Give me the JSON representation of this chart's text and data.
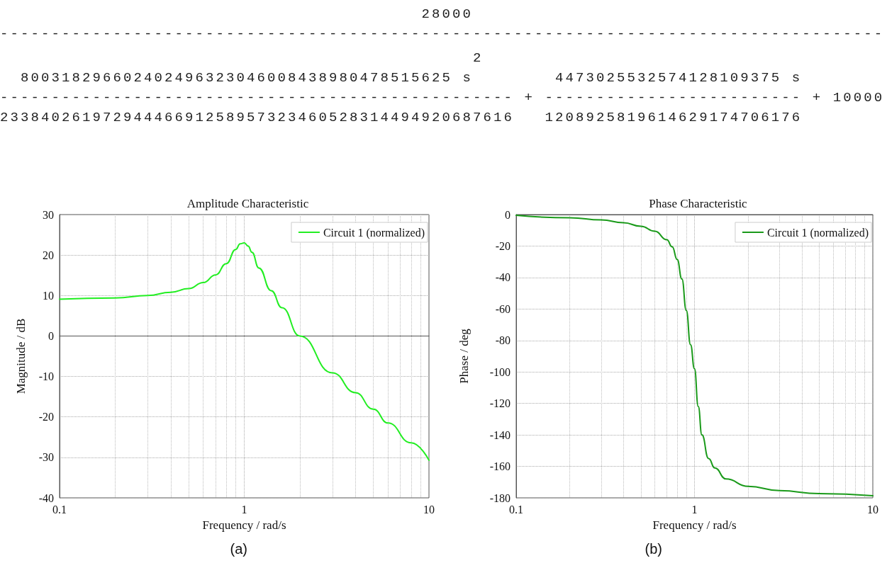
{
  "chart_data": [
    {
      "type": "other",
      "annotations": [
        "                                         28000",
        "--------------------------------------------------------------------------------------",
        "                                              2",
        "  800318296602402496323046008438980478515625 s        4473025532574128109375 s",
        "-------------------------------------------------- + ------------------------- + 10000",
        "23384026197294446691258957323460528314494920687616   1208925819614629174706176"
      ]
    },
    {
      "type": "line",
      "title": "Amplitude Characteristic",
      "xlabel": "Frequency / rad/s",
      "ylabel": "Magnitude / dB",
      "log": "x",
      "grid": true,
      "legend": "top right",
      "xlim": [
        0.1,
        10
      ],
      "xticks": [
        0.1,
        1,
        10
      ],
      "ylim": [
        -40,
        30
      ],
      "yticks": [
        -40,
        -30,
        -20,
        -10,
        0,
        10,
        20,
        30
      ],
      "annotations": [
        "(a)"
      ],
      "series": [
        {
          "name": "Circuit 1 (normalized)",
          "color": "#22ee22",
          "x": [
            0.1,
            0.2,
            0.3,
            0.4,
            0.5,
            0.6,
            0.7,
            0.8,
            0.9,
            0.95,
            1.0,
            1.05,
            1.1,
            1.2,
            1.4,
            1.6,
            2,
            3,
            4,
            5,
            6,
            8,
            10
          ],
          "values": [
            9.1,
            9.4,
            10.0,
            10.8,
            11.7,
            13.2,
            15.1,
            17.9,
            21.4,
            22.8,
            23.0,
            22.2,
            20.7,
            16.8,
            11.2,
            7.0,
            0.0,
            -9.1,
            -14.0,
            -18.1,
            -21.5,
            -26.4,
            -30.7
          ]
        }
      ]
    },
    {
      "type": "line",
      "title": "Phase Characteristic",
      "xlabel": "Frequency / rad/s",
      "ylabel": "Phase / deg",
      "log": "x",
      "grid": true,
      "legend": "top right",
      "xlim": [
        0.1,
        10
      ],
      "xticks": [
        0.1,
        1,
        10
      ],
      "ylim": [
        -180,
        0
      ],
      "yticks": [
        -180,
        -160,
        -140,
        -120,
        -100,
        -80,
        -60,
        -40,
        -20,
        0
      ],
      "annotations": [
        "(b)"
      ],
      "series": [
        {
          "name": "Circuit 1 (normalized)",
          "color": "#1a9a1a",
          "x": [
            0.1,
            0.2,
            0.3,
            0.4,
            0.5,
            0.6,
            0.7,
            0.75,
            0.8,
            0.85,
            0.9,
            0.95,
            1.0,
            1.05,
            1.1,
            1.2,
            1.3,
            1.5,
            2,
            3,
            5,
            10
          ],
          "values": [
            -0.5,
            -2,
            -3.4,
            -5.2,
            -7.4,
            -10.6,
            -16,
            -20.5,
            -28.6,
            -41,
            -61,
            -82.7,
            -98,
            -122,
            -140,
            -155,
            -161,
            -168,
            -172.7,
            -175.4,
            -177.3,
            -178.7
          ]
        }
      ]
    }
  ]
}
